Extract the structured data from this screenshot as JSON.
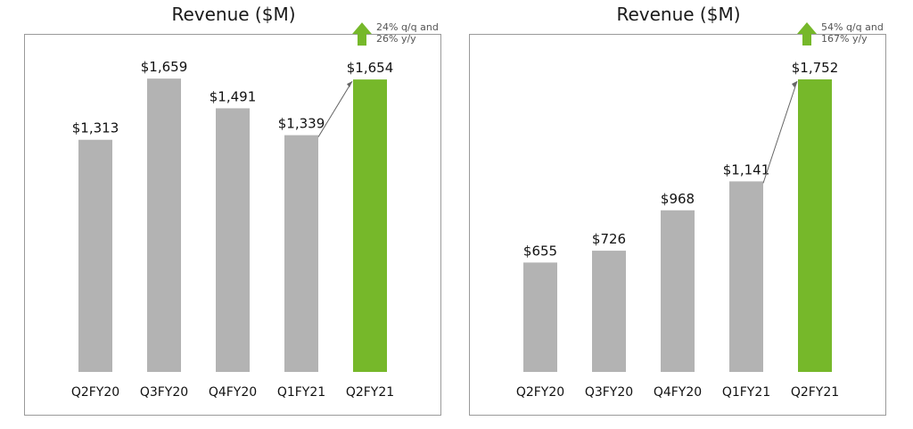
{
  "chart_data": [
    {
      "type": "bar",
      "title": "Revenue ($M)",
      "categories": [
        "Q2FY20",
        "Q3FY20",
        "Q4FY20",
        "Q1FY21",
        "Q2FY21"
      ],
      "values": [
        1313,
        1659,
        1491,
        1339,
        1654
      ],
      "labels": [
        "$1,313",
        "$1,659",
        "$1,491",
        "$1,339",
        "$1,654"
      ],
      "highlight_index": 4,
      "ylim": [
        0,
        1700
      ],
      "xlabel": "",
      "ylabel": "",
      "annotation": {
        "line1": "24% q/q and",
        "line2": "26% y/y"
      }
    },
    {
      "type": "bar",
      "title": "Revenue ($M)",
      "categories": [
        "Q2FY20",
        "Q3FY20",
        "Q4FY20",
        "Q1FY21",
        "Q2FY21"
      ],
      "values": [
        655,
        726,
        968,
        1141,
        1752
      ],
      "labels": [
        "$655",
        "$726",
        "$968",
        "$1,141",
        "$1,752"
      ],
      "highlight_index": 4,
      "ylim": [
        0,
        1800
      ],
      "xlabel": "",
      "ylabel": "",
      "annotation": {
        "line1": "54% q/q and",
        "line2": "167% y/y"
      }
    }
  ],
  "colors": {
    "bar": "#b3b3b3",
    "highlight": "#76b82a",
    "arrow_line": "#666666"
  }
}
